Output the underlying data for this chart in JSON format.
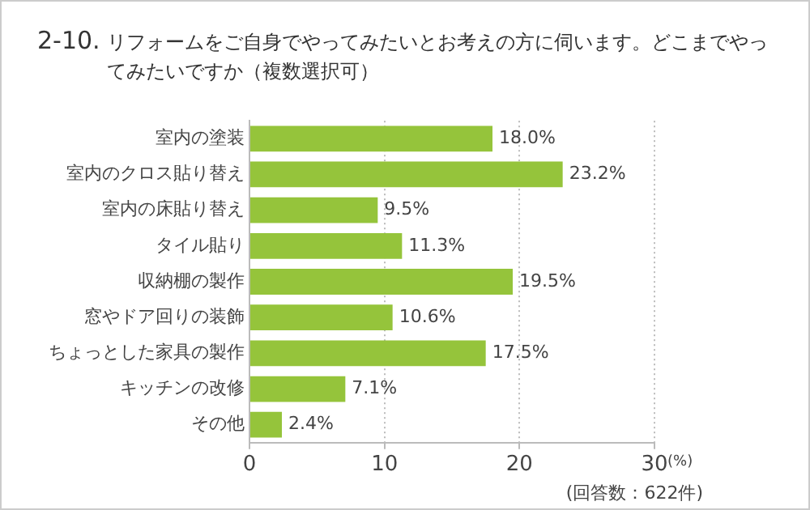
{
  "chart_data": {
    "type": "bar",
    "orientation": "horizontal",
    "title": "2-10. リフォームをご自身でやってみたいとお考えの方に伺います。どこまでやってみたいですか（複数選択可）",
    "categories": [
      "室内の塗装",
      "室内のクロス貼り替え",
      "室内の床貼り替え",
      "タイル貼り",
      "収納棚の製作",
      "窓やドア回りの装飾",
      "ちょっとした家具の製作",
      "キッチンの改修",
      "その他"
    ],
    "values": [
      18.0,
      23.2,
      9.5,
      11.3,
      19.5,
      10.6,
      17.5,
      7.1,
      2.4
    ],
    "value_labels": [
      "18.0%",
      "23.2%",
      "9.5%",
      "11.3%",
      "19.5%",
      "10.6%",
      "17.5%",
      "7.1%",
      "2.4%"
    ],
    "color": "#95c43b",
    "xlim": [
      0,
      30
    ],
    "xticks": [
      0,
      10,
      20,
      30
    ],
    "grid": "x",
    "xlabel": "(%)",
    "annotations": [
      "(回答数：622件)"
    ]
  }
}
